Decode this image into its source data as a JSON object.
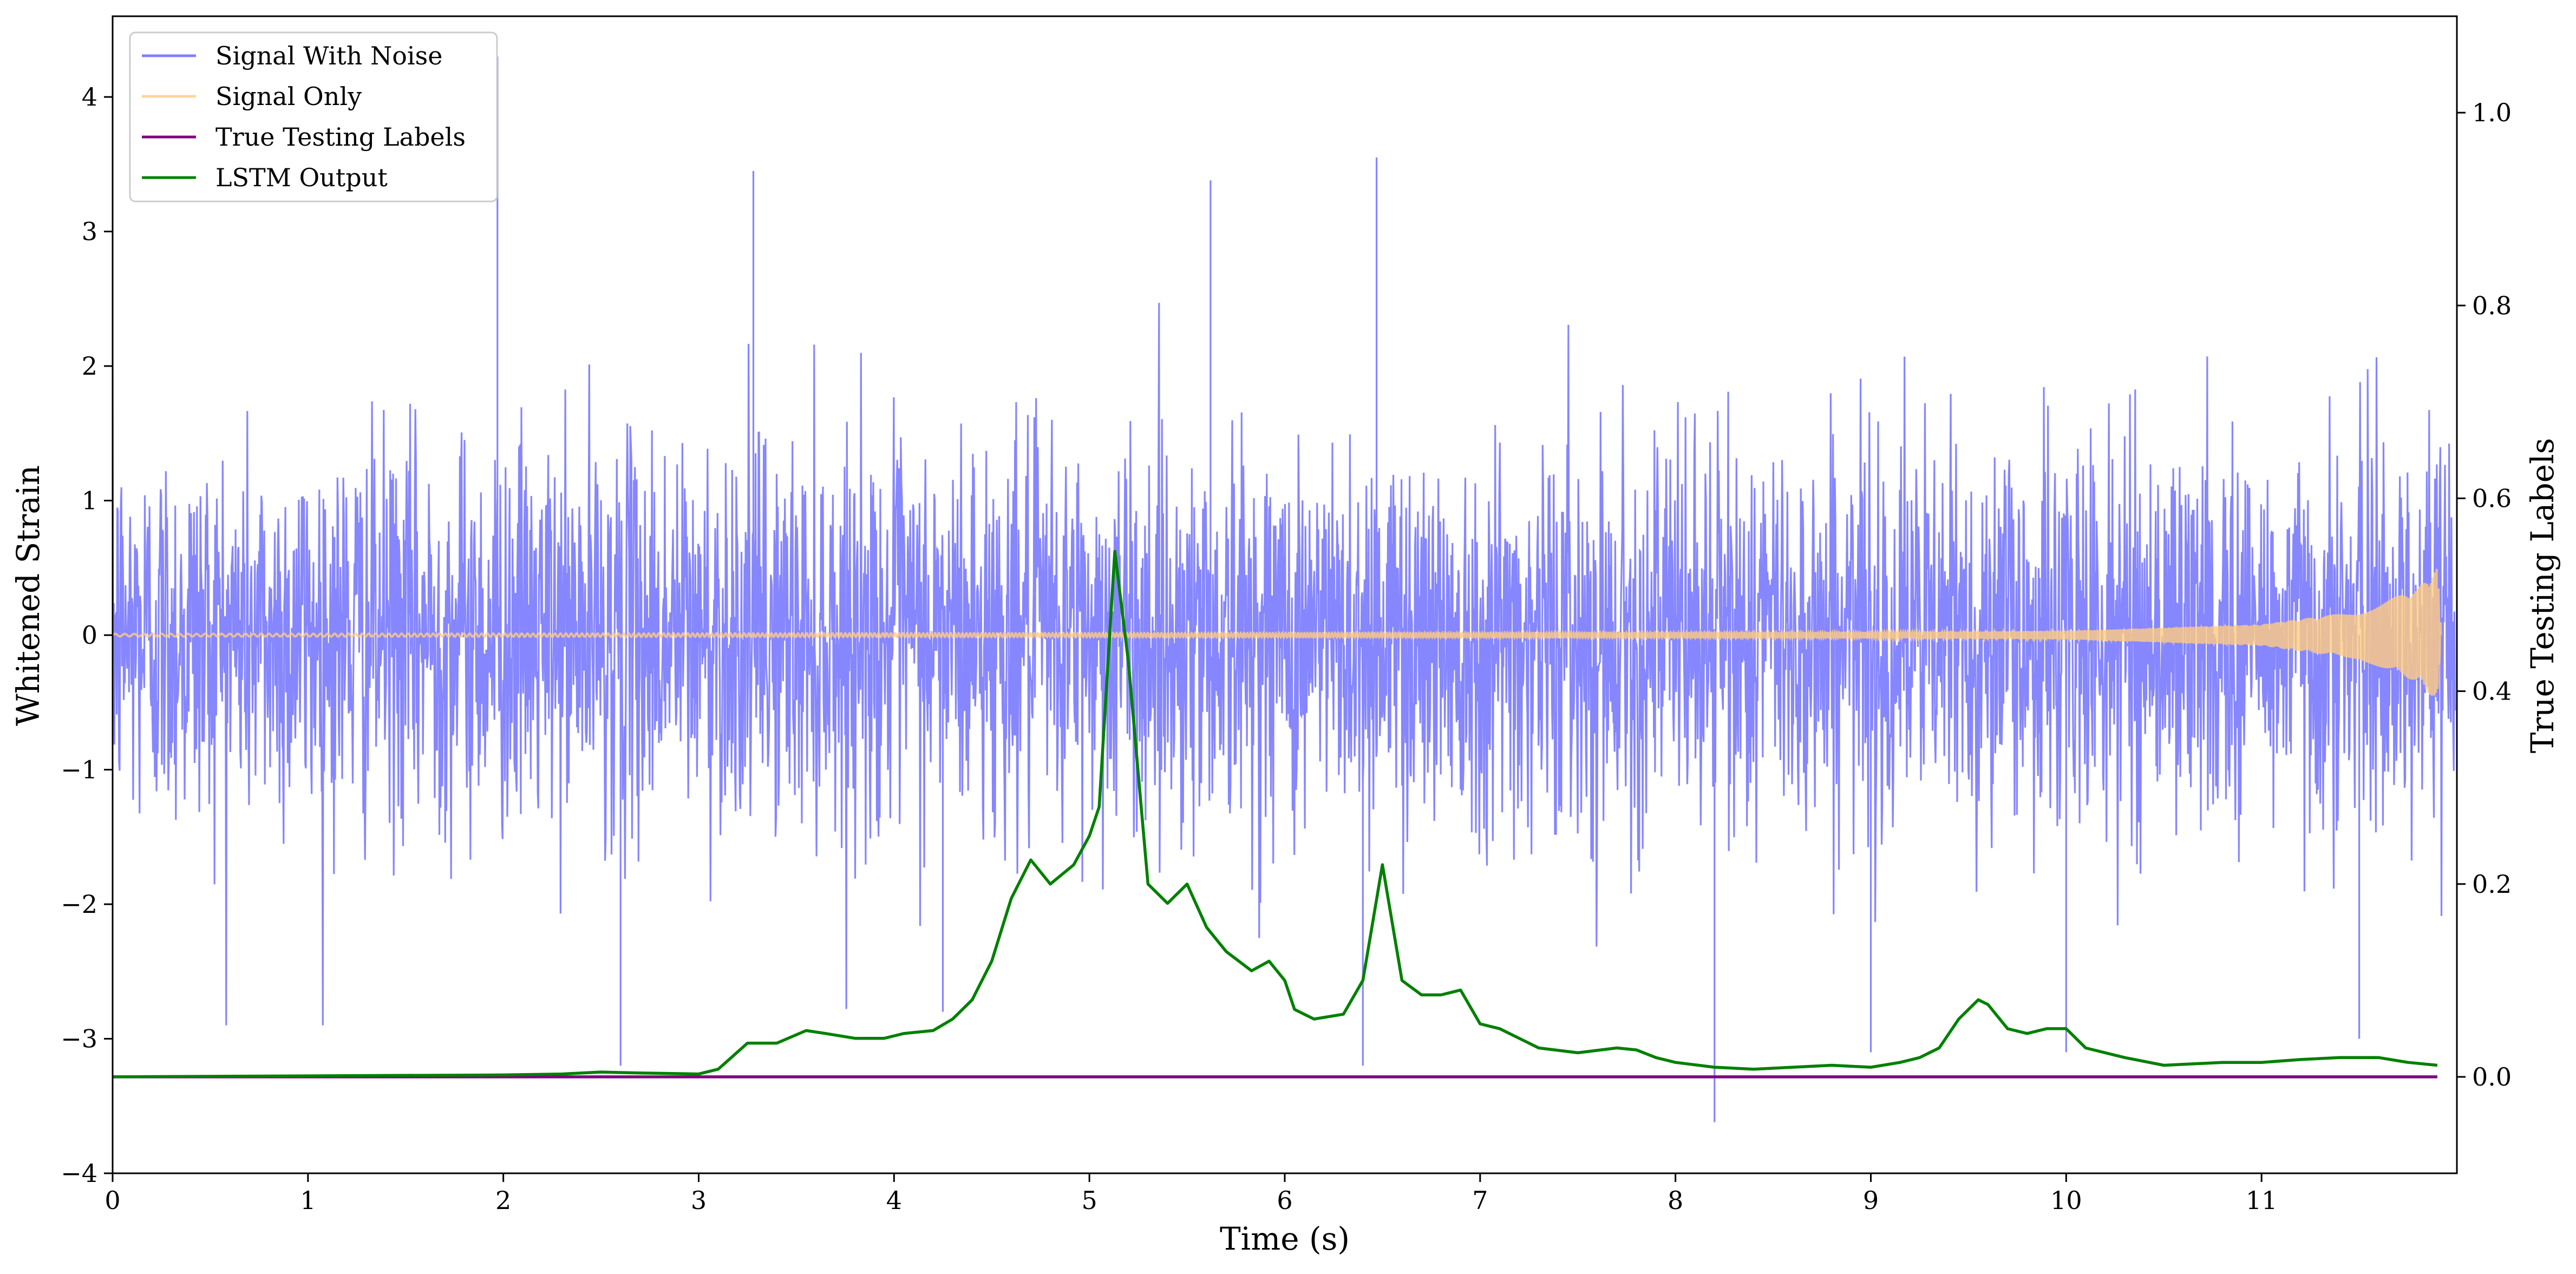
{
  "chart_data": {
    "type": "line",
    "title": "",
    "xlabel": "Time (s)",
    "ylabel": "Whitened Strain",
    "ylabel_right": "True Testing Labels",
    "xlim": [
      0,
      12
    ],
    "ylim_left": [
      -4,
      4.6
    ],
    "ylim_right": [
      -0.1,
      1.1
    ],
    "x_ticks": [
      0,
      1,
      2,
      3,
      4,
      5,
      6,
      7,
      8,
      9,
      10,
      11
    ],
    "x_tick_labels": [
      "0",
      "1",
      "2",
      "3",
      "4",
      "5",
      "6",
      "7",
      "8",
      "9",
      "10",
      "11"
    ],
    "y_left_ticks": [
      -4,
      -3,
      -2,
      -1,
      0,
      1,
      2,
      3,
      4
    ],
    "y_left_tick_labels": [
      "−4",
      "−3",
      "−2",
      "−1",
      "0",
      "1",
      "2",
      "3",
      "4"
    ],
    "y_right_ticks": [
      0.0,
      0.2,
      0.4,
      0.6,
      0.8,
      1.0
    ],
    "y_right_tick_labels": [
      "0.0",
      "0.2",
      "0.4",
      "0.6",
      "0.8",
      "1.0"
    ],
    "grid": false,
    "legend_position": "top-left",
    "series": [
      {
        "name": "Signal With Noise",
        "axis": "left",
        "color": "#7f7fff",
        "kind": "noise",
        "std": 0.72,
        "spikes": [
          [
            1.97,
            4.3
          ],
          [
            3.28,
            3.45
          ],
          [
            5.62,
            3.38
          ],
          [
            6.47,
            3.55
          ],
          [
            8.2,
            -3.62
          ],
          [
            2.6,
            -3.2
          ],
          [
            6.4,
            -3.2
          ],
          [
            4.25,
            -2.8
          ],
          [
            9.0,
            -3.1
          ],
          [
            10.0,
            -3.1
          ],
          [
            11.5,
            -3.0
          ]
        ]
      },
      {
        "name": "Signal Only",
        "axis": "left",
        "color": "#ffcc80",
        "kind": "chirp",
        "envelope": [
          [
            0,
            0.01
          ],
          [
            9,
            0.02
          ],
          [
            10,
            0.03
          ],
          [
            11,
            0.08
          ],
          [
            11.5,
            0.18
          ],
          [
            11.8,
            0.35
          ],
          [
            11.9,
            0.5
          ],
          [
            11.92,
            0.0
          ]
        ]
      },
      {
        "name": "True Testing Labels",
        "axis": "right",
        "color": "#800080",
        "x": [
          0,
          11.9
        ],
        "y": [
          0.0,
          0.0
        ]
      },
      {
        "name": "LSTM Output",
        "axis": "right",
        "color": "#008000",
        "x": [
          0,
          1,
          2,
          2.3,
          2.5,
          2.7,
          3,
          3.1,
          3.25,
          3.4,
          3.55,
          3.65,
          3.8,
          3.95,
          4.05,
          4.2,
          4.3,
          4.4,
          4.5,
          4.6,
          4.7,
          4.8,
          4.92,
          5.0,
          5.05,
          5.13,
          5.2,
          5.3,
          5.4,
          5.5,
          5.6,
          5.7,
          5.83,
          5.92,
          6.0,
          6.05,
          6.15,
          6.3,
          6.4,
          6.45,
          6.5,
          6.6,
          6.7,
          6.8,
          6.9,
          7.0,
          7.1,
          7.2,
          7.3,
          7.5,
          7.7,
          7.8,
          7.9,
          8.0,
          8.2,
          8.4,
          8.6,
          8.8,
          9.0,
          9.15,
          9.25,
          9.35,
          9.45,
          9.55,
          9.6,
          9.7,
          9.8,
          9.9,
          10.0,
          10.1,
          10.3,
          10.5,
          10.8,
          11.0,
          11.2,
          11.4,
          11.6,
          11.75,
          11.9
        ],
        "y": [
          0.0,
          0.001,
          0.002,
          0.003,
          0.005,
          0.004,
          0.003,
          0.008,
          0.035,
          0.035,
          0.048,
          0.045,
          0.04,
          0.04,
          0.045,
          0.048,
          0.06,
          0.08,
          0.12,
          0.185,
          0.225,
          0.2,
          0.22,
          0.25,
          0.28,
          0.545,
          0.43,
          0.2,
          0.18,
          0.2,
          0.155,
          0.13,
          0.11,
          0.12,
          0.1,
          0.07,
          0.06,
          0.065,
          0.1,
          0.16,
          0.22,
          0.1,
          0.085,
          0.085,
          0.09,
          0.055,
          0.05,
          0.04,
          0.03,
          0.025,
          0.03,
          0.028,
          0.02,
          0.015,
          0.01,
          0.008,
          0.01,
          0.012,
          0.01,
          0.015,
          0.02,
          0.03,
          0.06,
          0.08,
          0.075,
          0.05,
          0.045,
          0.05,
          0.05,
          0.03,
          0.02,
          0.012,
          0.015,
          0.015,
          0.018,
          0.02,
          0.02,
          0.015,
          0.012
        ]
      }
    ]
  }
}
